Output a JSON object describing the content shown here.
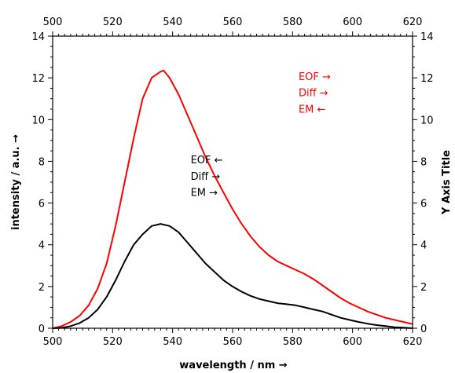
{
  "chart_data": {
    "type": "line",
    "xlabel": "wavelength / nm →",
    "ylabel": "intensity / a.u. →",
    "y2label": "Y Axis Title",
    "xlim": [
      500,
      620
    ],
    "ylim": [
      0,
      14
    ],
    "x_ticks": [
      500,
      520,
      540,
      560,
      580,
      600,
      620
    ],
    "y_ticks": [
      0,
      2,
      4,
      6,
      8,
      10,
      12,
      14
    ],
    "grid": false,
    "colors": {
      "red": "#ff0000",
      "black": "#000000"
    },
    "series": [
      {
        "color": "#ff0000",
        "x": [
          500,
          503,
          506,
          509,
          512,
          515,
          518,
          521,
          524,
          527,
          530,
          533,
          536,
          537,
          539,
          542,
          545,
          548,
          551,
          554,
          557,
          560,
          563,
          566,
          569,
          572,
          575,
          578,
          581,
          584,
          587,
          590,
          593,
          596,
          599,
          602,
          605,
          608,
          611,
          614,
          617,
          620
        ],
        "y": [
          0.0,
          0.1,
          0.3,
          0.6,
          1.1,
          1.9,
          3.1,
          4.9,
          7.0,
          9.1,
          11.0,
          12.0,
          12.3,
          12.35,
          12.0,
          11.2,
          10.2,
          9.2,
          8.2,
          7.3,
          6.5,
          5.7,
          5.0,
          4.4,
          3.9,
          3.5,
          3.2,
          3.0,
          2.8,
          2.6,
          2.35,
          2.05,
          1.75,
          1.45,
          1.2,
          1.0,
          0.8,
          0.65,
          0.5,
          0.4,
          0.3,
          0.2
        ]
      },
      {
        "color": "#000000",
        "x": [
          500,
          503,
          506,
          509,
          512,
          515,
          518,
          521,
          524,
          527,
          530,
          533,
          536,
          539,
          542,
          545,
          548,
          551,
          554,
          557,
          560,
          563,
          566,
          569,
          572,
          575,
          578,
          581,
          584,
          587,
          590,
          593,
          596,
          599,
          602,
          605,
          608,
          611,
          614,
          617,
          620
        ],
        "y": [
          0.0,
          0.02,
          0.1,
          0.25,
          0.5,
          0.9,
          1.5,
          2.3,
          3.2,
          4.0,
          4.5,
          4.9,
          5.0,
          4.9,
          4.6,
          4.1,
          3.6,
          3.1,
          2.7,
          2.3,
          2.0,
          1.75,
          1.55,
          1.4,
          1.3,
          1.2,
          1.15,
          1.1,
          1.0,
          0.9,
          0.8,
          0.65,
          0.5,
          0.4,
          0.3,
          0.22,
          0.15,
          0.1,
          0.05,
          0.03,
          0.0
        ]
      }
    ],
    "annotations": [
      {
        "color": "#ff0000",
        "x": 582,
        "y_line_1": 11.9,
        "lines": [
          "EOF →",
          "Diff →",
          "EM ←"
        ]
      },
      {
        "color": "#000000",
        "x": 546,
        "y_line_1": 7.9,
        "lines": [
          "EOF ←",
          "Diff →",
          "EM →"
        ]
      }
    ]
  }
}
